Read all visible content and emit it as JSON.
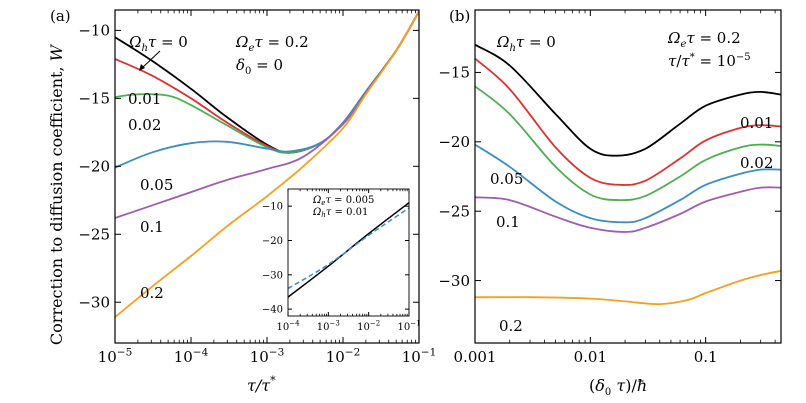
{
  "chart_data": [
    {
      "panel_label": "(a)",
      "type": "line",
      "xlabel": "τ/τ*",
      "ylabel": "Correction to diffusion coefficient, W",
      "xscale": "log",
      "xlim": [
        1e-05,
        0.1
      ],
      "ylim": [
        -33,
        -8.5
      ],
      "xticks": [
        "10−5",
        "10−4",
        "10−3",
        "10−2",
        "10−1"
      ],
      "yticks": [
        -10,
        -15,
        -20,
        -25,
        -30
      ],
      "annotations": [
        "Ωeτ = 0.2",
        "δ0 = 0",
        "Ωhτ = 0"
      ],
      "series": [
        {
          "name": "0",
          "color": "#000000",
          "x": [
            1e-05,
            3e-05,
            0.0001,
            0.0003,
            0.001,
            0.002,
            0.005,
            0.01,
            0.02,
            0.05,
            0.1
          ],
          "y": [
            -10.5,
            -12.2,
            -14.3,
            -16.4,
            -18.4,
            -19.0,
            -18.3,
            -16.8,
            -14.5,
            -11.5,
            -8.6
          ]
        },
        {
          "name": "0.01",
          "color": "#e03030",
          "x": [
            1e-05,
            3e-05,
            0.0001,
            0.0003,
            0.001,
            0.002,
            0.005,
            0.01,
            0.02,
            0.05,
            0.1
          ],
          "y": [
            -12.1,
            -13.3,
            -15.0,
            -16.8,
            -18.5,
            -19.0,
            -18.3,
            -16.8,
            -14.5,
            -11.5,
            -8.6
          ]
        },
        {
          "name": "0.02",
          "color": "#4caf50",
          "x": [
            1e-05,
            2e-05,
            5e-05,
            0.0001,
            0.0003,
            0.001,
            0.002,
            0.005,
            0.01,
            0.02,
            0.05,
            0.1
          ],
          "y": [
            -14.9,
            -14.7,
            -14.8,
            -15.5,
            -17.0,
            -18.6,
            -19.0,
            -18.3,
            -16.8,
            -14.5,
            -11.5,
            -8.6
          ]
        },
        {
          "name": "0.05",
          "color": "#3a8ec4",
          "x": [
            1e-05,
            3e-05,
            0.0001,
            0.0003,
            0.001,
            0.002,
            0.005,
            0.01,
            0.02,
            0.05,
            0.1
          ],
          "y": [
            -20.1,
            -19.0,
            -18.3,
            -18.2,
            -18.7,
            -18.9,
            -18.3,
            -16.8,
            -14.5,
            -11.5,
            -8.6
          ]
        },
        {
          "name": "0.1",
          "color": "#a05db0",
          "x": [
            1e-05,
            3e-05,
            0.0001,
            0.0003,
            0.001,
            0.003,
            0.01,
            0.02,
            0.05,
            0.1
          ],
          "y": [
            -23.8,
            -22.9,
            -21.9,
            -21.0,
            -20.2,
            -19.3,
            -16.9,
            -14.6,
            -11.5,
            -8.6
          ]
        },
        {
          "name": "0.2",
          "color": "#f5a020",
          "x": [
            1e-05,
            3e-05,
            0.0001,
            0.0003,
            0.001,
            0.003,
            0.01,
            0.02,
            0.05,
            0.1
          ],
          "y": [
            -31.1,
            -28.9,
            -26.6,
            -24.4,
            -22.2,
            -20.0,
            -17.2,
            -14.7,
            -11.5,
            -8.6
          ]
        }
      ]
    },
    {
      "panel_label": "inset",
      "type": "line",
      "xscale": "log",
      "xlim": [
        0.0001,
        0.1
      ],
      "ylim": [
        -42,
        -5
      ],
      "xticks": [
        "10−4",
        "10−3",
        "10−2",
        "10−1"
      ],
      "yticks": [
        -10,
        -20,
        -30,
        -40
      ],
      "annotations": [
        "Ωeτ = 0.005",
        "Ωhτ = 0.01"
      ],
      "series": [
        {
          "color": "#000000",
          "style": "solid",
          "x": [
            0.0001,
            0.001,
            0.01,
            0.1
          ],
          "y": [
            -36.5,
            -27.5,
            -18.0,
            -9.0
          ]
        },
        {
          "color": "#3a8ec4",
          "style": "dashed",
          "x": [
            0.0001,
            0.001,
            0.01,
            0.1
          ],
          "y": [
            -34.0,
            -27.0,
            -18.5,
            -10.5
          ]
        }
      ]
    },
    {
      "panel_label": "(b)",
      "type": "line",
      "xlabel": "(δ0 τ)/ħ",
      "xscale": "log",
      "xlim": [
        0.001,
        0.45
      ],
      "ylim": [
        -34.5,
        -10.5
      ],
      "xticks": [
        "0.001",
        "0.01",
        "0.1"
      ],
      "yticks": [
        -15,
        -20,
        -25,
        -30
      ],
      "annotations": [
        "Ωeτ = 0.2",
        "τ/τ* = 10−5",
        "Ωhτ = 0"
      ],
      "series": [
        {
          "name": "0",
          "color": "#000000",
          "x": [
            0.001,
            0.002,
            0.005,
            0.01,
            0.017,
            0.03,
            0.06,
            0.1,
            0.2,
            0.3,
            0.45
          ],
          "y": [
            -13.0,
            -14.5,
            -18.0,
            -20.5,
            -21.0,
            -20.5,
            -18.7,
            -17.4,
            -16.6,
            -16.4,
            -16.6
          ]
        },
        {
          "name": "0.01",
          "color": "#e03030",
          "x": [
            0.001,
            0.002,
            0.005,
            0.01,
            0.018,
            0.03,
            0.06,
            0.1,
            0.2,
            0.3,
            0.45
          ],
          "y": [
            -14.0,
            -16.2,
            -20.4,
            -22.6,
            -23.1,
            -22.8,
            -21.2,
            -19.9,
            -19.0,
            -18.8,
            -18.9
          ]
        },
        {
          "name": "0.02",
          "color": "#4caf50",
          "x": [
            0.001,
            0.002,
            0.005,
            0.01,
            0.018,
            0.03,
            0.06,
            0.1,
            0.2,
            0.3,
            0.45
          ],
          "y": [
            -16.0,
            -18.0,
            -21.8,
            -23.8,
            -24.2,
            -23.9,
            -22.5,
            -21.3,
            -20.4,
            -20.2,
            -20.3
          ]
        },
        {
          "name": "0.05",
          "color": "#3a8ec4",
          "x": [
            0.001,
            0.002,
            0.005,
            0.01,
            0.02,
            0.03,
            0.06,
            0.1,
            0.2,
            0.3,
            0.45
          ],
          "y": [
            -20.2,
            -21.8,
            -24.3,
            -25.5,
            -25.8,
            -25.5,
            -24.2,
            -23.1,
            -22.3,
            -22.0,
            -22.0
          ]
        },
        {
          "name": "0.1",
          "color": "#a05db0",
          "x": [
            0.001,
            0.002,
            0.005,
            0.01,
            0.02,
            0.03,
            0.06,
            0.1,
            0.2,
            0.3,
            0.45
          ],
          "y": [
            -24.0,
            -24.2,
            -25.4,
            -26.2,
            -26.5,
            -26.2,
            -25.2,
            -24.3,
            -23.6,
            -23.3,
            -23.3
          ]
        },
        {
          "name": "0.2",
          "color": "#f5a020",
          "x": [
            0.001,
            0.003,
            0.01,
            0.02,
            0.04,
            0.07,
            0.1,
            0.2,
            0.3,
            0.45
          ],
          "y": [
            -31.2,
            -31.2,
            -31.3,
            -31.5,
            -31.7,
            -31.4,
            -30.9,
            -30.0,
            -29.6,
            -29.3
          ]
        }
      ]
    }
  ]
}
